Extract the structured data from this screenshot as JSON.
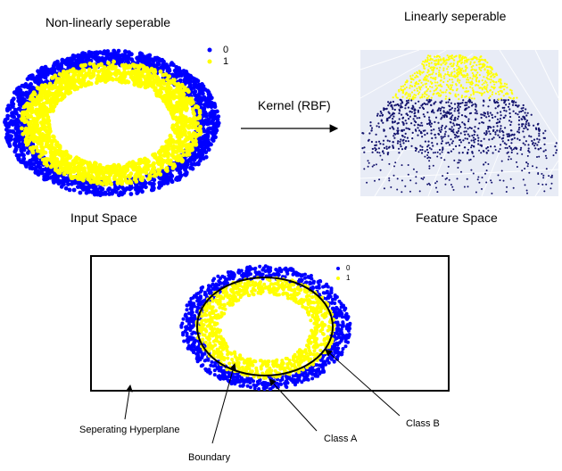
{
  "top_left": {
    "title": "Non-linearly seperable",
    "caption": "Input Space"
  },
  "top_right": {
    "title": "Linearly seperable",
    "caption": "Feature Space"
  },
  "transform": {
    "label": "Kernel (RBF)"
  },
  "legend": {
    "items": [
      {
        "label": "0",
        "color": "#0000ff"
      },
      {
        "label": "1",
        "color": "#ffff00"
      }
    ]
  },
  "annotations": {
    "hyperplane": "Seperating Hyperplane",
    "boundary": "Boundary",
    "class_a": "Class A",
    "class_b": "Class B"
  },
  "colors": {
    "class0": "#0000ff",
    "class1": "#ffff00",
    "feature_bg": "#e8ecf6",
    "feature_dots": "#14146e"
  }
}
